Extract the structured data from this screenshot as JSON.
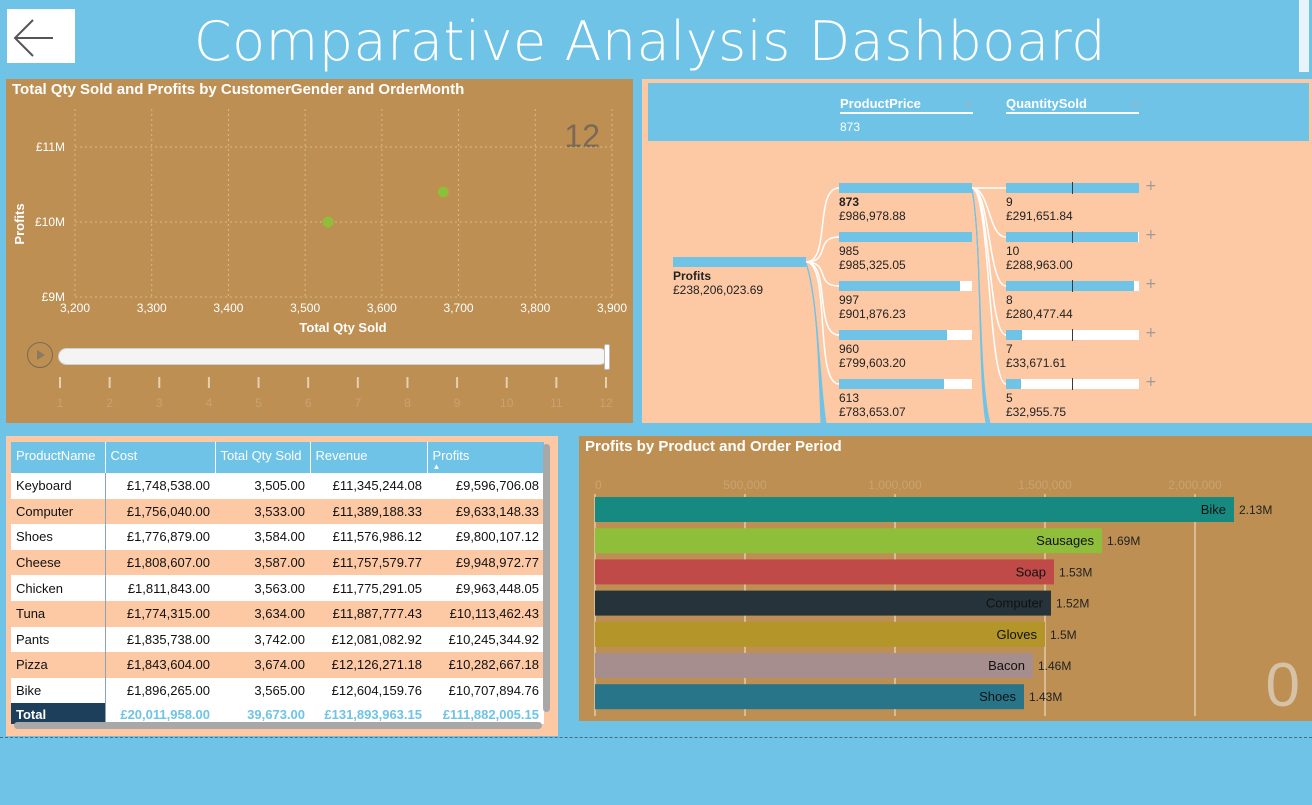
{
  "header": {
    "title": "Comparative Analysis Dashboard",
    "back_icon": "arrow-left-icon"
  },
  "scatter": {
    "title": "Total Qty Sold and Profits by CustomerGender and OrderMonth",
    "frame_label": "12",
    "play_icon": "play-icon",
    "play_ticks": [
      "1",
      "2",
      "3",
      "4",
      "5",
      "6",
      "7",
      "8",
      "9",
      "10",
      "11",
      "12"
    ],
    "colors": {
      "point": "#8fbe3a"
    }
  },
  "chart_data": [
    {
      "type": "scatter",
      "title": "Total Qty Sold and Profits by CustomerGender and OrderMonth",
      "xlabel": "Total Qty Sold",
      "ylabel": "Profits",
      "xlim": [
        3200,
        3900
      ],
      "ylim": [
        9000000,
        11000000
      ],
      "x_ticks": [
        "3,200",
        "3,300",
        "3,400",
        "3,500",
        "3,600",
        "3,700",
        "3,800",
        "3,900"
      ],
      "y_ticks": [
        "£11M",
        "£10M",
        "£9M"
      ],
      "grid": true,
      "points": [
        {
          "x": 3530,
          "y": 10000000
        },
        {
          "x": 3680,
          "y": 10400000
        }
      ]
    },
    {
      "type": "bar",
      "title": "Profits by Product and Order Period",
      "orientation": "horizontal",
      "categories": [
        "Bike",
        "Sausages",
        "Soap",
        "Computer",
        "Gloves",
        "Bacon",
        "Shoes"
      ],
      "values": [
        2130000,
        1690000,
        1530000,
        1520000,
        1500000,
        1460000,
        1430000
      ],
      "value_labels": [
        "2.13M",
        "1.69M",
        "1.53M",
        "1.52M",
        "1.5M",
        "1.46M",
        "1.43M"
      ],
      "bar_colors": [
        "#168a80",
        "#8fbe3a",
        "#c04a48",
        "#26333a",
        "#b39529",
        "#a68e8e",
        "#28758a"
      ],
      "xlim": [
        0,
        2000000
      ],
      "x_ticks": [
        "0",
        "500,000",
        "1,000,000",
        "1,500,000",
        "2,000,000"
      ],
      "grid": true,
      "frame_label": "0"
    }
  ],
  "tree": {
    "header_fields": [
      {
        "label": "ProductPrice",
        "value": "873"
      },
      {
        "label": "QuantitySold",
        "value": ""
      }
    ],
    "close_icon": "close-icon",
    "root": {
      "label": "Profits",
      "value": "£238,206,023.69"
    },
    "level1": [
      {
        "label": "873",
        "value": "£986,978.88",
        "fill": 1.0,
        "selected": true
      },
      {
        "label": "985",
        "value": "£985,325.05",
        "fill": 1.0
      },
      {
        "label": "997",
        "value": "£901,876.23",
        "fill": 0.91
      },
      {
        "label": "960",
        "value": "£799,603.20",
        "fill": 0.81
      },
      {
        "label": "613",
        "value": "£783,653.07",
        "fill": 0.79
      }
    ],
    "level2": [
      {
        "label": "9",
        "value": "£291,651.84",
        "fill": 1.0
      },
      {
        "label": "10",
        "value": "£288,963.00",
        "fill": 0.99
      },
      {
        "label": "8",
        "value": "£280,477.44",
        "fill": 0.96
      },
      {
        "label": "7",
        "value": "£33,671.61",
        "fill": 0.12
      },
      {
        "label": "5",
        "value": "£32,955.75",
        "fill": 0.11
      }
    ],
    "expand_icon": "plus-icon"
  },
  "table": {
    "columns": [
      "ProductName",
      "Cost",
      "Total Qty Sold",
      "Revenue",
      "Profits"
    ],
    "sort_icon": "sort-ascending-icon",
    "rows": [
      [
        "Keyboard",
        "£1,748,538.00",
        "3,505.00",
        "£11,345,244.08",
        "£9,596,706.08"
      ],
      [
        "Computer",
        "£1,756,040.00",
        "3,533.00",
        "£11,389,188.33",
        "£9,633,148.33"
      ],
      [
        "Shoes",
        "£1,776,879.00",
        "3,584.00",
        "£11,576,986.12",
        "£9,800,107.12"
      ],
      [
        "Cheese",
        "£1,808,607.00",
        "3,587.00",
        "£11,757,579.77",
        "£9,948,972.77"
      ],
      [
        "Chicken",
        "£1,811,843.00",
        "3,563.00",
        "£11,775,291.05",
        "£9,963,448.05"
      ],
      [
        "Tuna",
        "£1,774,315.00",
        "3,634.00",
        "£11,887,777.43",
        "£10,113,462.43"
      ],
      [
        "Pants",
        "£1,835,738.00",
        "3,742.00",
        "£12,081,082.92",
        "£10,245,344.92"
      ],
      [
        "Pizza",
        "£1,843,604.00",
        "3,674.00",
        "£12,126,271.18",
        "£10,282,667.18"
      ],
      [
        "Bike",
        "£1,896,265.00",
        "3,565.00",
        "£12,604,159.76",
        "£10,707,894.76"
      ]
    ],
    "total": [
      "Total",
      "£20,011,958.00",
      "39,673.00",
      "£131,893,963.15",
      "£111,882,005.15"
    ]
  },
  "theme": {
    "background": "#6fc3e7",
    "panel_tan": "#bd8f52",
    "panel_peach": "#fdc9a5"
  }
}
